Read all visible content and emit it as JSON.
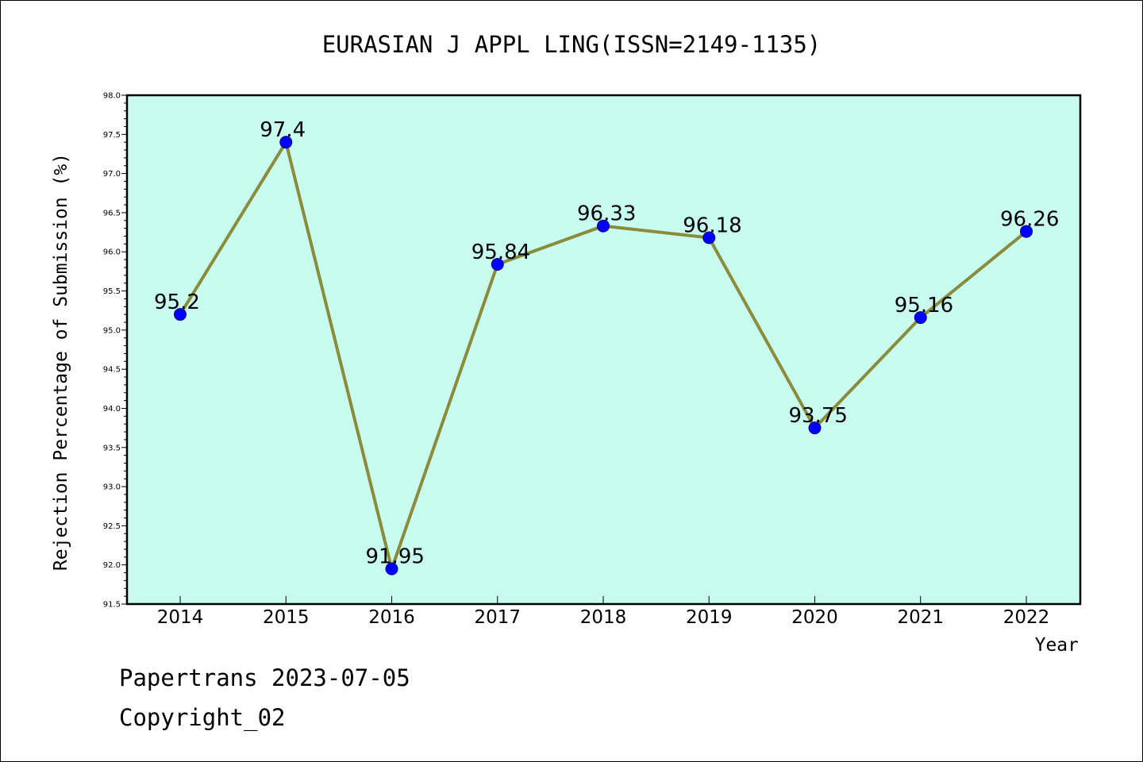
{
  "chart_data": {
    "type": "line",
    "title": "EURASIAN J APPL LING(ISSN=2149-1135)",
    "xlabel": "Year",
    "ylabel": "Rejection Percentage of Submission (%)",
    "categories": [
      "2014",
      "2015",
      "2016",
      "2017",
      "2018",
      "2019",
      "2020",
      "2021",
      "2022"
    ],
    "values": [
      95.2,
      97.4,
      91.95,
      95.84,
      96.33,
      96.18,
      93.75,
      95.16,
      96.26
    ],
    "value_labels": [
      "95.2",
      "97.4",
      "91.95",
      "95.84",
      "96.33",
      "96.18",
      "93.75",
      "95.16",
      "96.26"
    ],
    "ylim": [
      91.5,
      98.0
    ],
    "y_major_ticks": [
      "91.5",
      "92.0",
      "92.5",
      "93.0",
      "93.5",
      "94.0",
      "94.5",
      "95.0",
      "95.5",
      "96.0",
      "96.5",
      "97.0",
      "97.5",
      "98.0"
    ],
    "y_minor_step": 0.1,
    "grid": false,
    "colors": {
      "plot_background": "#c8fcee",
      "line": "#8b8b3c",
      "marker": "#0000ff",
      "marker_edge": "#00008b"
    }
  },
  "footer": {
    "line1": "Papertrans 2023-07-05",
    "line2": "Copyright_02"
  }
}
